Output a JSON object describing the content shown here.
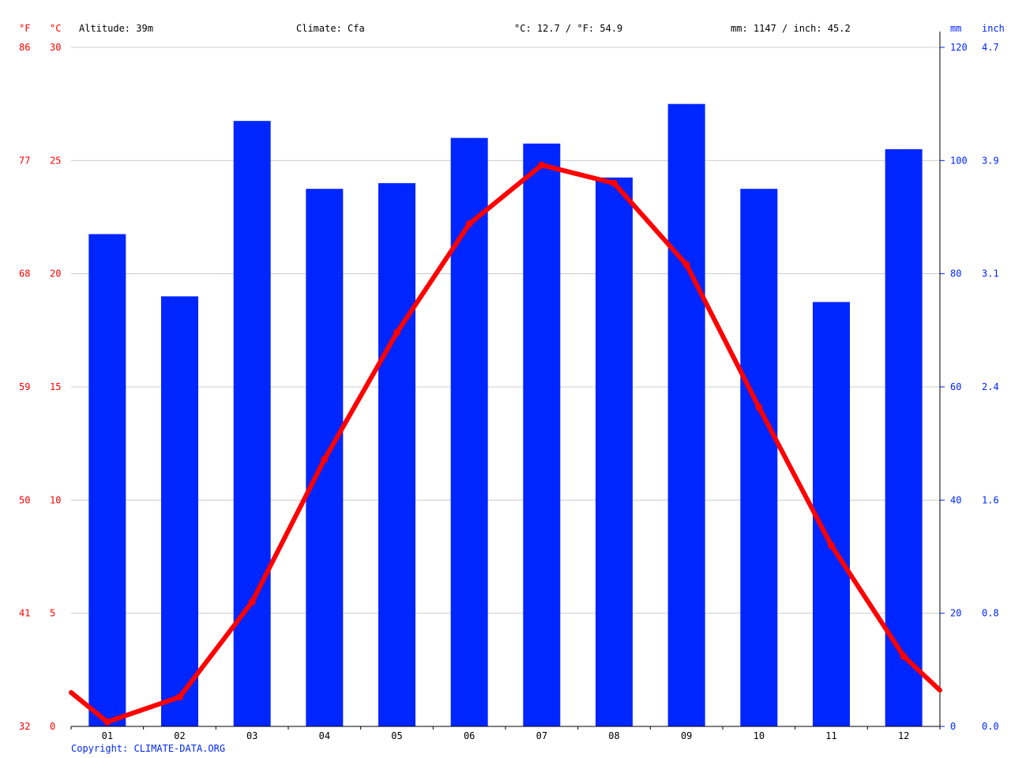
{
  "header": {
    "unit_f": "°F",
    "unit_c": "°C",
    "altitude": "Altitude: 39m",
    "climate": "Climate: Cfa",
    "temp_avg": "°C: 12.7 / °F: 54.9",
    "precip_avg": "mm: 1147 / inch: 45.2",
    "unit_mm": "mm",
    "unit_inch": "inch"
  },
  "copyright": "Copyright: CLIMATE-DATA.ORG",
  "colors": {
    "temperature": "#ff0000",
    "precipitation": "#0026ff",
    "grid": "#cccccc",
    "axis": "#000000"
  },
  "chart_data": {
    "type": "bar+line",
    "categories": [
      "01",
      "02",
      "03",
      "04",
      "05",
      "06",
      "07",
      "08",
      "09",
      "10",
      "11",
      "12"
    ],
    "precipitation_mm": [
      87,
      76,
      107,
      95,
      96,
      104,
      103,
      97,
      110,
      95,
      75,
      102
    ],
    "temperature_c": [
      0.2,
      1.3,
      5.5,
      11.8,
      17.4,
      22.2,
      24.8,
      24.0,
      20.4,
      14.1,
      8.0,
      3.1
    ],
    "temperature_line_ends_c": [
      1.5,
      1.6
    ],
    "y_left_c": {
      "range": [
        0,
        30
      ],
      "ticks": [
        "0",
        "5",
        "10",
        "15",
        "20",
        "25",
        "30"
      ]
    },
    "y_left_f": {
      "ticks": [
        "32",
        "41",
        "50",
        "59",
        "68",
        "77",
        "86"
      ]
    },
    "y_right_mm": {
      "range": [
        0,
        120
      ],
      "ticks": [
        "0",
        "20",
        "40",
        "60",
        "80",
        "100",
        "120"
      ]
    },
    "y_right_inch": {
      "ticks": [
        "0.0",
        "0.8",
        "1.6",
        "2.4",
        "3.1",
        "3.9",
        "4.7"
      ]
    },
    "grid": true
  }
}
